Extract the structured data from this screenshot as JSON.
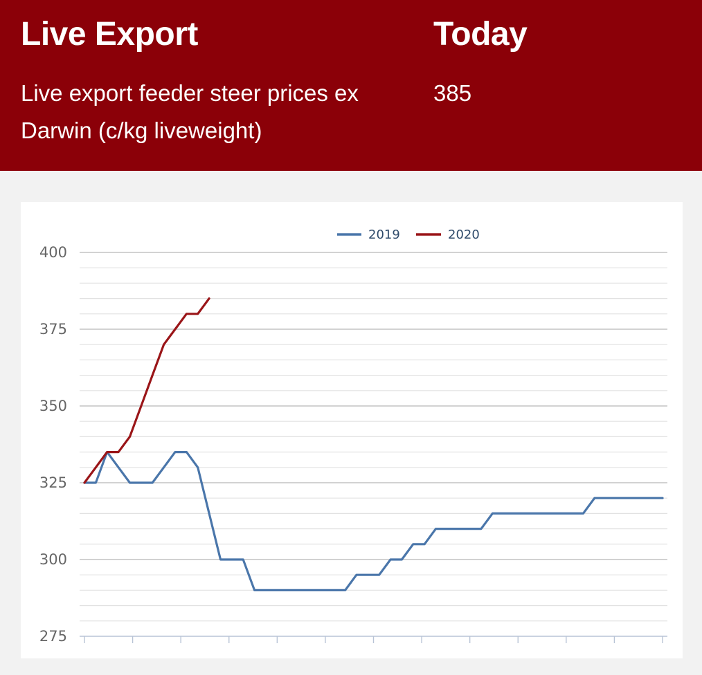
{
  "header": {
    "left_title": "Live Export",
    "left_subtitle": "Live export feeder steer prices ex Darwin (c/kg liveweight)",
    "right_title": "Today",
    "right_value": "385"
  },
  "colors": {
    "header_bg": "#8b0008",
    "series_2019": "#4a76aa",
    "series_2020": "#9a1518",
    "grid_major": "#c4c4c4",
    "grid_minor": "#e2e2e2"
  },
  "chart_data": {
    "type": "line",
    "ylim": [
      275,
      400
    ],
    "yticks": [
      "400",
      "375",
      "350",
      "325",
      "300",
      "275"
    ],
    "minor_step": 5,
    "x_count": 52,
    "legend_position": "top-center",
    "grid": true,
    "series": [
      {
        "name": "2019",
        "color": "#4a76aa",
        "values": [
          325,
          325,
          335,
          330,
          325,
          325,
          325,
          330,
          335,
          335,
          330,
          315,
          300,
          300,
          300,
          290,
          290,
          290,
          290,
          290,
          290,
          290,
          290,
          290,
          295,
          295,
          295,
          300,
          300,
          305,
          305,
          310,
          310,
          310,
          310,
          310,
          315,
          315,
          315,
          315,
          315,
          315,
          315,
          315,
          315,
          320,
          320,
          320,
          320,
          320,
          320,
          320
        ]
      },
      {
        "name": "2020",
        "color": "#9a1518",
        "values": [
          325,
          330,
          335,
          335,
          340,
          350,
          360,
          370,
          375,
          380,
          380,
          385
        ]
      }
    ]
  }
}
